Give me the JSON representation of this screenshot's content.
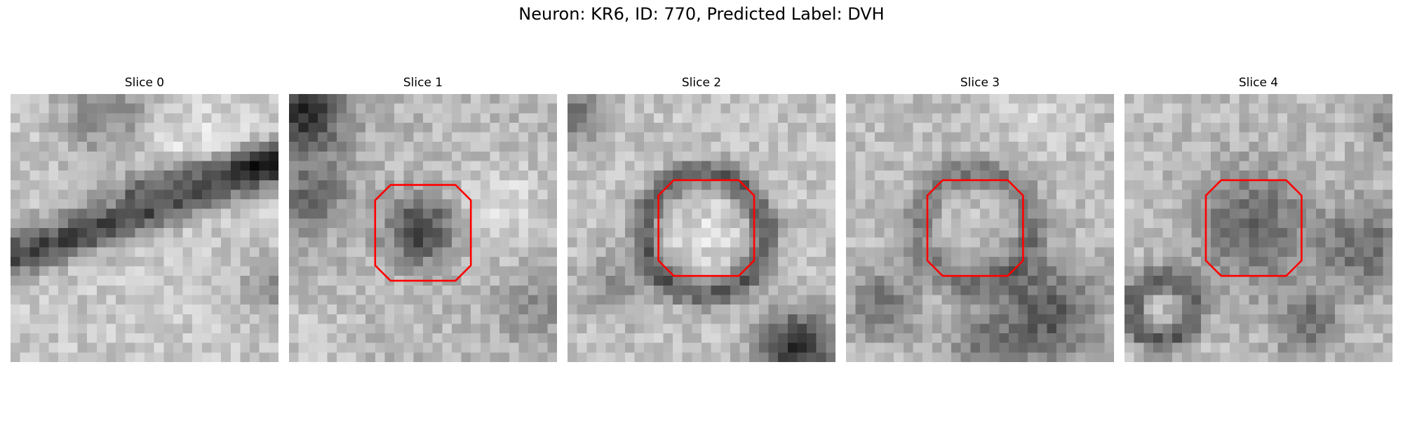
{
  "figure": {
    "title": "Neuron: KR6, ID: 770, Predicted Label: DVH"
  },
  "panels": [
    {
      "title": "Slice 0",
      "roi_shown": false
    },
    {
      "title": "Slice 1",
      "roi_shown": true
    },
    {
      "title": "Slice 2",
      "roi_shown": true
    },
    {
      "title": "Slice 3",
      "roi_shown": true
    },
    {
      "title": "Slice 4",
      "roi_shown": true
    }
  ],
  "colors": {
    "roi_outline": "#ff0000",
    "background": "#ffffff"
  },
  "colormap": "grayscale"
}
